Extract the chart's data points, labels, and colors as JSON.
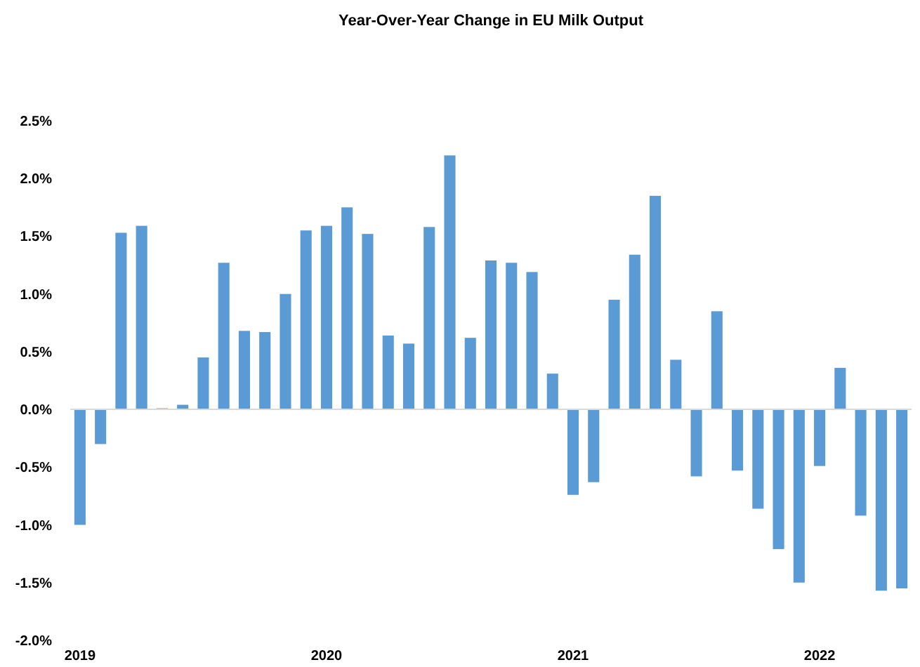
{
  "chart_data": {
    "type": "bar",
    "title": "Year-Over-Year Change in EU Milk Output",
    "categories": [
      "2019",
      null,
      null,
      null,
      null,
      null,
      null,
      null,
      null,
      null,
      null,
      null,
      "2020",
      null,
      null,
      null,
      null,
      null,
      null,
      null,
      null,
      null,
      null,
      null,
      "2021",
      null,
      null,
      null,
      null,
      null,
      null,
      null,
      null,
      null,
      null,
      null,
      "2022",
      null,
      null,
      null,
      null
    ],
    "values": [
      -1.0,
      -0.3,
      1.53,
      1.59,
      0.01,
      0.04,
      0.45,
      1.27,
      0.68,
      0.67,
      1.0,
      1.55,
      1.59,
      1.75,
      1.52,
      0.64,
      0.57,
      1.58,
      2.2,
      0.62,
      1.29,
      1.27,
      1.19,
      0.31,
      -0.74,
      -0.63,
      0.95,
      1.34,
      1.85,
      0.43,
      -0.58,
      0.85,
      -0.53,
      -0.86,
      -1.21,
      -1.5,
      -0.49,
      0.36,
      -0.92,
      -1.57,
      -1.55
    ],
    "color": "#5b9bd5",
    "ylim": [
      -2.0,
      2.5
    ],
    "yticks": [
      {
        "value": -2.0,
        "label": "-2.0%"
      },
      {
        "value": -1.5,
        "label": "-1.5%"
      },
      {
        "value": -1.0,
        "label": "-1.0%"
      },
      {
        "value": -0.5,
        "label": "-0.5%"
      },
      {
        "value": 0,
        "label": "0.0%"
      },
      {
        "value": 0.5,
        "label": "0.5%"
      },
      {
        "value": 1.0,
        "label": "1.0%"
      },
      {
        "value": 1.5,
        "label": "1.5%"
      },
      {
        "value": 2.0,
        "label": "2.0%"
      },
      {
        "value": 2.5,
        "label": "2.5%"
      }
    ]
  }
}
